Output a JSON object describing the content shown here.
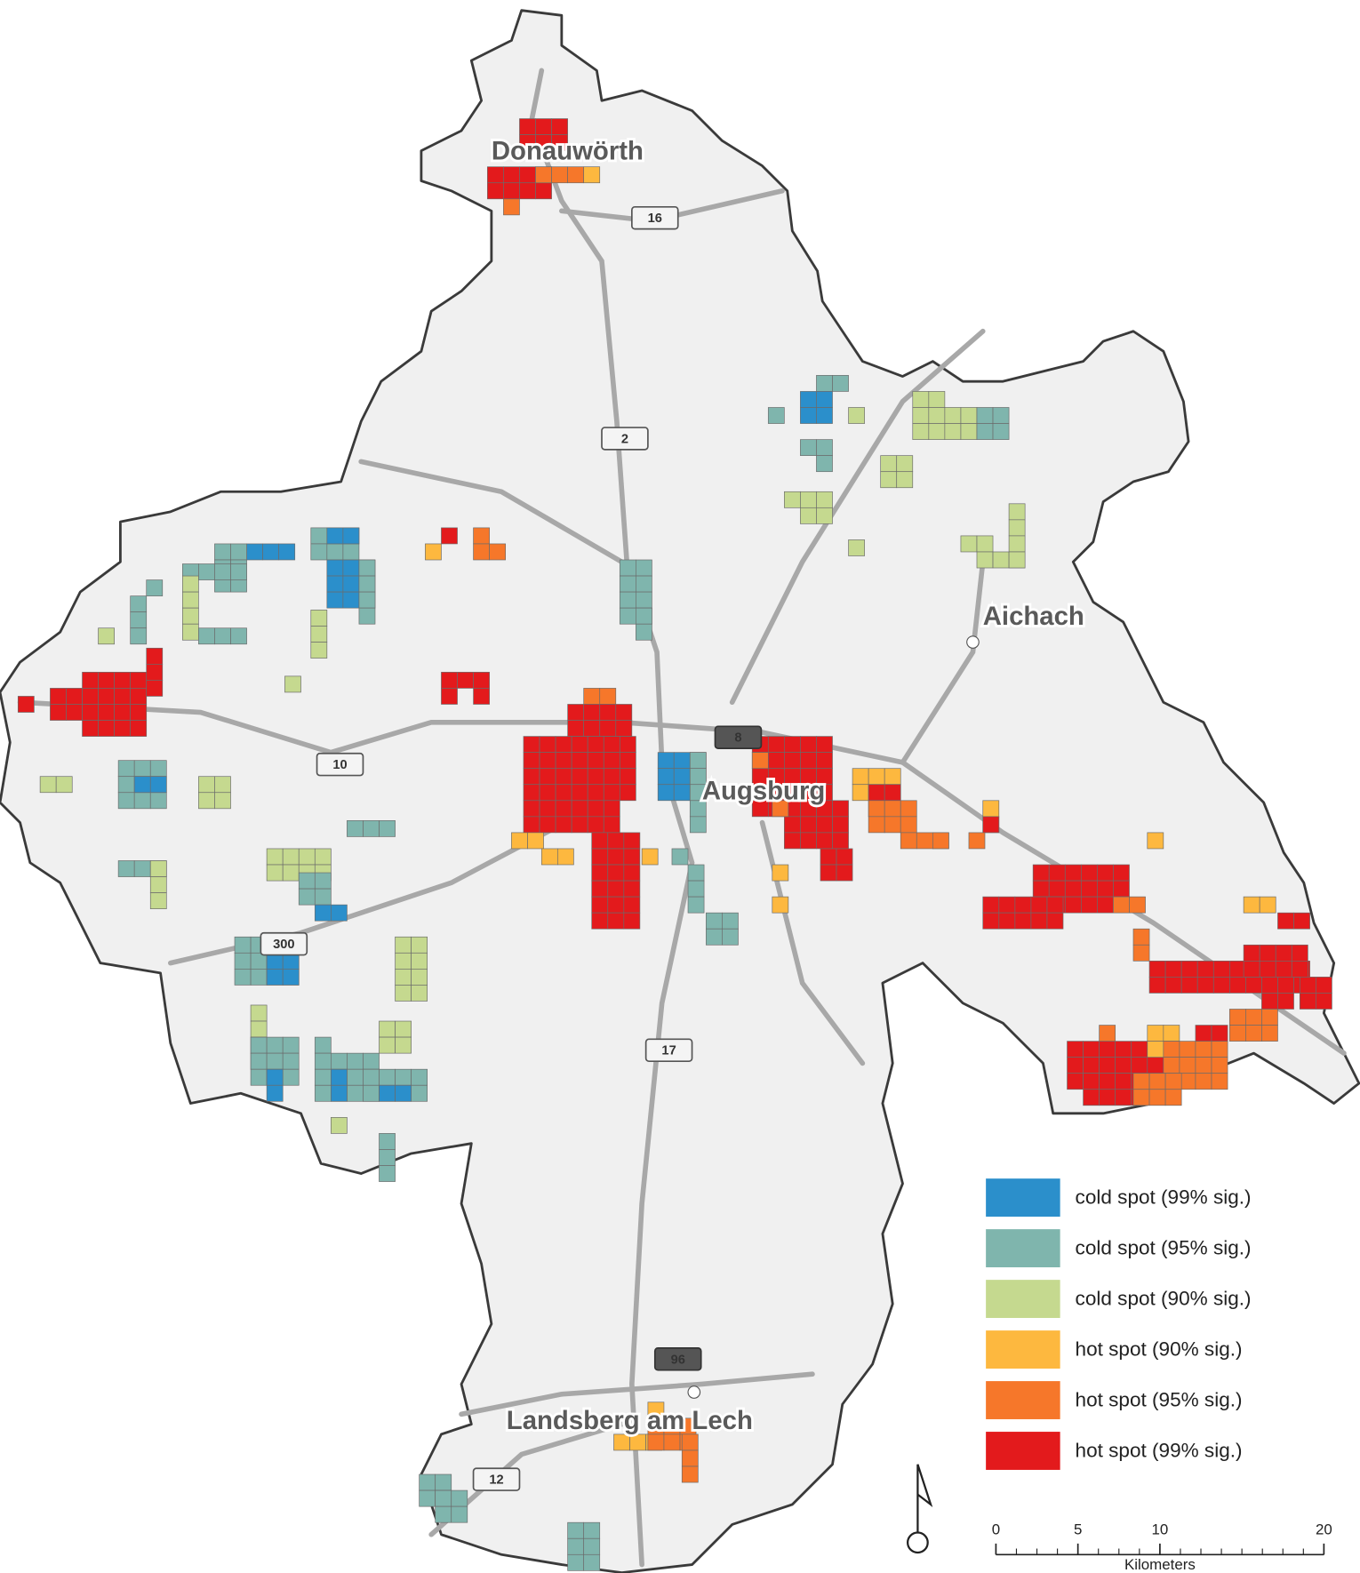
{
  "map": {
    "places": [
      {
        "label": "Donauwörth"
      },
      {
        "label": "Aichach"
      },
      {
        "label": "Augsburg"
      },
      {
        "label": "Landsberg am Lech"
      }
    ],
    "roads": [
      "16",
      "2",
      "8",
      "10",
      "300",
      "17",
      "96",
      "12"
    ],
    "legend": [
      {
        "label": "cold spot (99% sig.)",
        "color": "#2b8fcb"
      },
      {
        "label": "cold spot (95% sig.)",
        "color": "#7fb5ad"
      },
      {
        "label": "cold spot (90% sig.)",
        "color": "#c5d98f"
      },
      {
        "label": "hot spot (90% sig.)",
        "color": "#fdb83f"
      },
      {
        "label": "hot spot (95% sig.)",
        "color": "#f6772a"
      },
      {
        "label": "hot spot (99% sig.)",
        "color": "#e31a1c"
      }
    ],
    "scale": {
      "ticks": [
        0,
        5,
        10,
        20
      ],
      "unit": "Kilometers"
    }
  }
}
